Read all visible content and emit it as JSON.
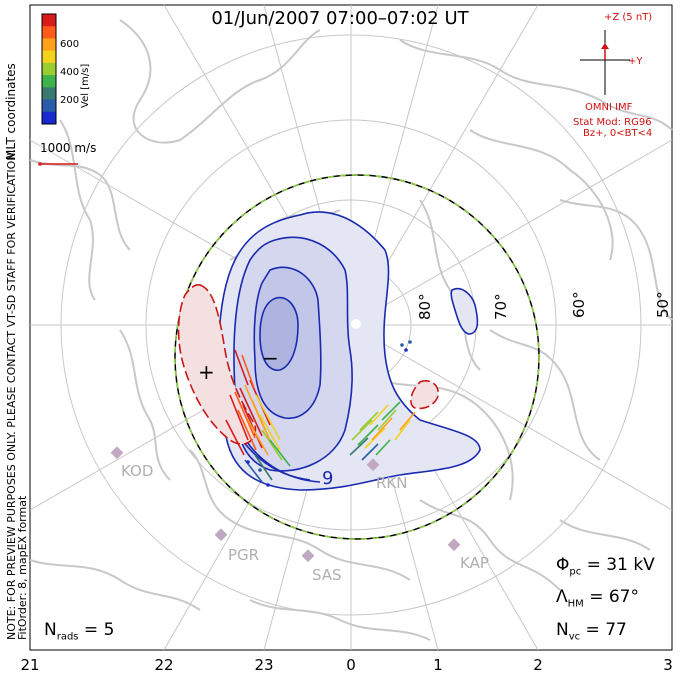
{
  "title": "01/Jun/2007 07:00–07:02 UT",
  "colorbar": {
    "label": "Vel [m/s]",
    "ticks": [
      "600",
      "400",
      "200"
    ],
    "colors": [
      "#d81b1b",
      "#ff5a1a",
      "#ffa21a",
      "#f2d21a",
      "#9acd32",
      "#3cb44b",
      "#3a7a6e",
      "#2a5caa",
      "#1a28d0"
    ]
  },
  "reference_vector": {
    "label": "1000 m/s"
  },
  "side_notes": {
    "coords": "MLT coordinates",
    "preview": "NOTE: FOR PREVIEW PURPOSES ONLY. PLEASE CONTACT VT-SD STAFF FOR VERIFICATION.",
    "fit": "FitOrder: 8, mapEX format"
  },
  "imf": {
    "z_label": "+Z (5 nT)",
    "y_label": "+Y",
    "source": "OMNI IMF",
    "model": "Stat Mod: RG96",
    "condition": "Bz+, 0<BT<4"
  },
  "latitude_labels": [
    "80°",
    "70°",
    "60°",
    "50°"
  ],
  "mlt_labels": [
    "21",
    "22",
    "23",
    "0",
    "1",
    "2",
    "3"
  ],
  "stations": [
    "KOD",
    "PGR",
    "SAS",
    "RKN",
    "KAP"
  ],
  "contour_labels": {
    "neg": "−",
    "pos": "+",
    "nine": "9"
  },
  "stats": {
    "phi_main": "Φ",
    "phi_sub": "pc",
    "phi_value": "= 31 kV",
    "lambda_main": "Λ",
    "lambda_sub": "HM",
    "lambda_value": "= 67°",
    "nvc_main": "N",
    "nvc_sub": "vc",
    "nvc_value": "= 77",
    "nrads_main": "N",
    "nrads_sub": "rads",
    "nrads_value": "= 5"
  },
  "colors": {
    "negative_cell": "#1a2ab0",
    "positive_cell": "#c81818",
    "boundary_green": "#8ccd3c",
    "coastline": "#c8c8c8",
    "grid": "#c8c8c8"
  }
}
